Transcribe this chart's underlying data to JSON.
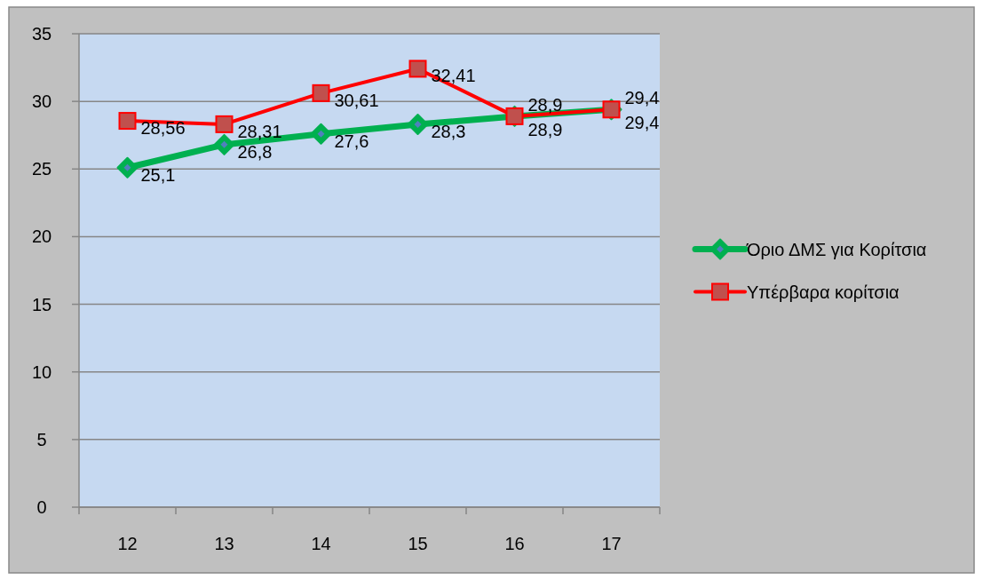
{
  "chart_data": {
    "type": "line",
    "categories": [
      "12",
      "13",
      "14",
      "15",
      "16",
      "17"
    ],
    "ylim": [
      0,
      35
    ],
    "yticks": [
      0,
      5,
      10,
      15,
      20,
      25,
      30,
      35
    ],
    "grid": "y",
    "legend": "right",
    "series": [
      {
        "name": "Όριο ΔΜΣ για Κορίτσια",
        "color": "#00b050",
        "marker": "diamond",
        "values": [
          25.1,
          26.8,
          27.6,
          28.3,
          28.9,
          29.4
        ],
        "value_labels": [
          "25,1",
          "26,8",
          "27,6",
          "28,3",
          "28,9",
          "29,4"
        ]
      },
      {
        "name": "Υπέρβαρα κορίτσια",
        "color": "#ff0000",
        "marker": "square",
        "values": [
          28.56,
          28.31,
          30.61,
          32.41,
          28.9,
          29.4
        ],
        "value_labels": [
          "28,56",
          "28,31",
          "30,61",
          "32,41",
          "28,9",
          "29,4"
        ]
      }
    ]
  }
}
